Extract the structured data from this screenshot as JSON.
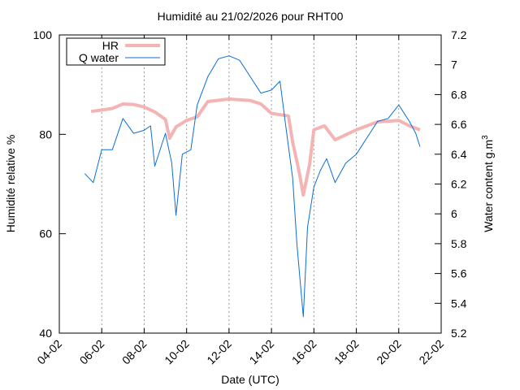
{
  "chart_data": {
    "type": "line",
    "title": "Humidité au 21/02/2026 pour RHT00",
    "xlabel": "Date (UTC)",
    "ylabel": "Humidité relative %",
    "y2label": "Water content g.m",
    "y2label_sup": "3",
    "xlim": [
      4,
      22
    ],
    "xticks": [
      {
        "value": 4,
        "label": "04-02"
      },
      {
        "value": 6,
        "label": "06-02"
      },
      {
        "value": 8,
        "label": "08-02"
      },
      {
        "value": 10,
        "label": "10-02"
      },
      {
        "value": 12,
        "label": "12-02"
      },
      {
        "value": 14,
        "label": "14-02"
      },
      {
        "value": 16,
        "label": "16-02"
      },
      {
        "value": 18,
        "label": "18-02"
      },
      {
        "value": 20,
        "label": "20-02"
      },
      {
        "value": 22,
        "label": "22-02"
      }
    ],
    "ylim": [
      40,
      100
    ],
    "yticks": [
      40,
      60,
      80,
      100
    ],
    "y2lim": [
      5.2,
      7.2
    ],
    "y2ticks": [
      5.2,
      5.4,
      5.6,
      5.8,
      6,
      6.2,
      6.4,
      6.6,
      6.8,
      7,
      7.2
    ],
    "grid": "x",
    "legend": "top left",
    "series": [
      {
        "name": "HR",
        "color": "#f4b4b4",
        "axis": "y",
        "x": [
          5.5,
          6.5,
          7,
          7.5,
          8,
          8.5,
          9,
          9.2,
          9.5,
          10,
          10.5,
          11,
          12,
          13,
          13.5,
          14,
          14.8,
          15,
          15.3,
          15.5,
          15.8,
          16,
          16.5,
          17,
          18,
          19,
          20,
          20.5,
          21
        ],
        "values": [
          84.6,
          85.2,
          86.1,
          86.0,
          85.5,
          84.5,
          83.0,
          79.2,
          81.5,
          82.8,
          83.5,
          86.6,
          87.1,
          86.8,
          86.1,
          84.2,
          83.7,
          78.4,
          72.5,
          67.8,
          74.0,
          80.9,
          81.7,
          78.9,
          80.9,
          82.5,
          82.8,
          81.7,
          80.9
        ]
      },
      {
        "name": "Q water",
        "color": "#0a6fd6",
        "axis": "y2",
        "x": [
          5.2,
          5.6,
          6,
          6.5,
          7,
          7.5,
          8,
          8.3,
          8.5,
          9,
          9.3,
          9.5,
          9.8,
          10.2,
          10.5,
          11,
          11.5,
          12,
          12.5,
          13,
          13.5,
          14,
          14.4,
          14.7,
          15,
          15.2,
          15.4,
          15.5,
          15.7,
          16,
          16.3,
          16.6,
          17,
          17.5,
          18,
          18.5,
          19,
          19.5,
          20,
          20.5,
          20.8,
          21
        ],
        "values": [
          6.27,
          6.21,
          6.43,
          6.43,
          6.64,
          6.54,
          6.56,
          6.59,
          6.32,
          6.54,
          6.34,
          5.99,
          6.4,
          6.43,
          6.73,
          6.92,
          7.04,
          7.06,
          7.03,
          6.92,
          6.81,
          6.83,
          6.89,
          6.56,
          6.24,
          5.8,
          5.47,
          5.31,
          5.91,
          6.18,
          6.29,
          6.37,
          6.21,
          6.34,
          6.4,
          6.51,
          6.62,
          6.64,
          6.73,
          6.62,
          6.54,
          6.45
        ]
      }
    ]
  }
}
